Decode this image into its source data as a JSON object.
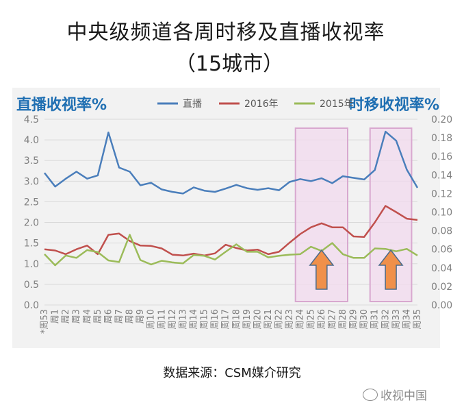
{
  "header": {
    "title_line1": "中央级频道各周时移及直播收视率",
    "title_line2": "（15城市）"
  },
  "chart_data": {
    "type": "line",
    "left_axis_title": "直播收视率%",
    "right_axis_title": "时移收视率%",
    "categories": [
      "*周53",
      "周1",
      "周2",
      "周3",
      "周4",
      "周5",
      "周6",
      "周7",
      "周8",
      "周9",
      "周10",
      "周11",
      "周12",
      "周13",
      "周14",
      "周15",
      "周16",
      "周17",
      "周18",
      "周19",
      "周20",
      "周21",
      "周22",
      "周23",
      "周24",
      "周25",
      "周26",
      "周27",
      "周28",
      "周29",
      "周30",
      "周31",
      "周32",
      "周33",
      "周34",
      "周35"
    ],
    "left_axis": {
      "min": 0,
      "max": 4.5,
      "ticks": [
        "0.0",
        "0.5",
        "1.0",
        "1.5",
        "2.0",
        "2.5",
        "3.0",
        "3.5",
        "4.0",
        "4.5"
      ]
    },
    "right_axis": {
      "min": 0,
      "max": 0.2,
      "ticks": [
        "0.00",
        "0.02",
        "0.04",
        "0.06",
        "0.08",
        "0.10",
        "0.12",
        "0.14",
        "0.16",
        "0.18",
        "0.20"
      ]
    },
    "legend_position": "top",
    "grid": true,
    "series": [
      {
        "name": "直播",
        "axis": "left",
        "color": "#4a7ebb",
        "values": [
          3.2,
          2.87,
          3.06,
          3.23,
          3.06,
          3.14,
          4.18,
          3.33,
          3.23,
          2.9,
          2.96,
          2.8,
          2.74,
          2.7,
          2.85,
          2.77,
          2.74,
          2.82,
          2.91,
          2.83,
          2.79,
          2.83,
          2.78,
          2.98,
          3.05,
          3.0,
          3.07,
          2.95,
          3.12,
          3.08,
          3.04,
          3.27,
          4.2,
          3.98,
          3.28,
          2.84
        ]
      },
      {
        "name": "2016年",
        "axis": "right",
        "color": "#c0504d",
        "values": [
          0.06,
          0.0587,
          0.0547,
          0.06,
          0.064,
          0.0547,
          0.0756,
          0.0769,
          0.0689,
          0.064,
          0.0636,
          0.0609,
          0.0542,
          0.0533,
          0.0553,
          0.0533,
          0.0556,
          0.0649,
          0.0613,
          0.0587,
          0.0596,
          0.0547,
          0.0573,
          0.0671,
          0.0764,
          0.0836,
          0.088,
          0.0836,
          0.0836,
          0.0738,
          0.0733,
          0.0889,
          0.1067,
          0.1,
          0.0929,
          0.0916
        ]
      },
      {
        "name": "2015年",
        "axis": "right",
        "color": "#9bbb59",
        "values": [
          0.0547,
          0.0427,
          0.0533,
          0.0507,
          0.0591,
          0.0569,
          0.048,
          0.0462,
          0.0756,
          0.0484,
          0.0436,
          0.0476,
          0.0458,
          0.0449,
          0.0538,
          0.0529,
          0.0489,
          0.0573,
          0.0653,
          0.0573,
          0.0573,
          0.0513,
          0.0529,
          0.0542,
          0.0547,
          0.0627,
          0.0582,
          0.0667,
          0.0547,
          0.0507,
          0.0507,
          0.0609,
          0.0604,
          0.0578,
          0.0604,
          0.0533
        ]
      }
    ],
    "highlights": [
      {
        "from": "周24",
        "to": "周28"
      },
      {
        "from": "周31",
        "to": "周34"
      }
    ]
  },
  "footer": {
    "source": "数据来源：CSM媒介研究",
    "watermark": "收视中国"
  },
  "colors": {
    "axis_title": "#1f6fb2",
    "highlight_fill": "#f2d9ee",
    "highlight_border": "#d8a8cf",
    "arrow_fill": "#f0904a",
    "arrow_stroke": "#4a6a8a"
  }
}
